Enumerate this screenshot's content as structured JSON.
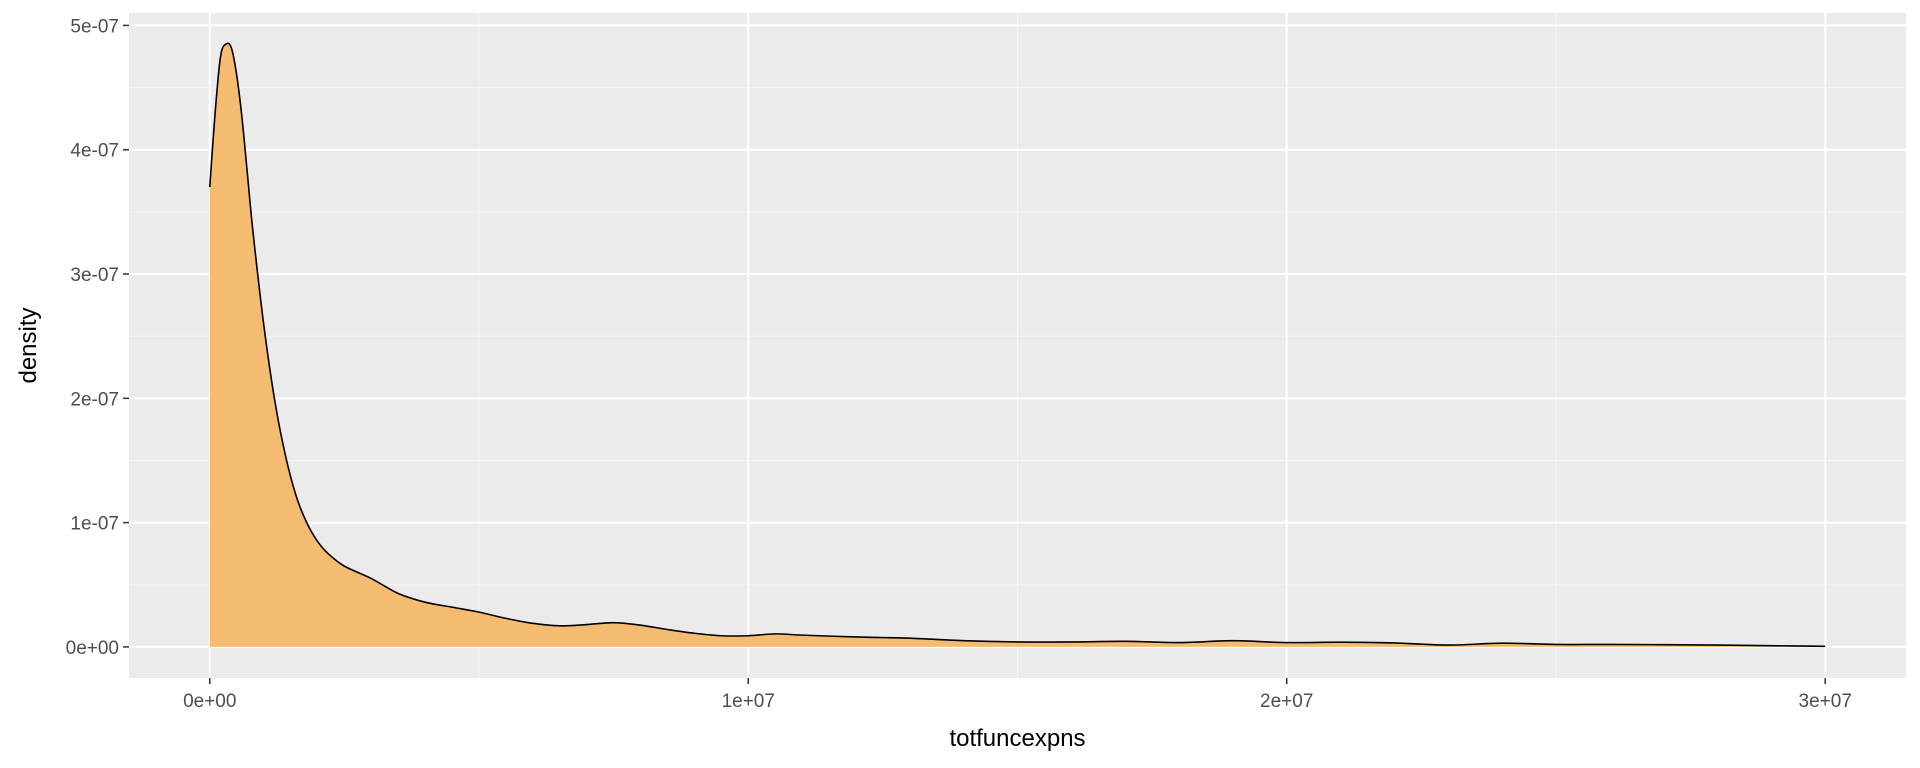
{
  "chart_data": {
    "type": "area",
    "subtype": "density",
    "title": "",
    "xlabel": "totfuncexpns",
    "ylabel": "density",
    "xlim": [
      -1500000,
      31500000
    ],
    "ylim": [
      -2.5e-08,
      5.1e-07
    ],
    "x_ticks": [
      0,
      10000000,
      20000000,
      30000000
    ],
    "x_tick_labels": [
      "0e+00",
      "1e+07",
      "2e+07",
      "3e+07"
    ],
    "y_ticks": [
      0,
      1e-07,
      2e-07,
      3e-07,
      4e-07,
      5e-07
    ],
    "y_tick_labels": [
      "0e+00",
      "1e-07",
      "2e-07",
      "3e-07",
      "4e-07",
      "5e-07"
    ],
    "grid": true,
    "legend": "none",
    "colors": {
      "fill": "#f5bb70",
      "line": "#000000",
      "panel_background": "#ebebeb",
      "grid_major": "#ffffff",
      "grid_minor": "#f5f5f5"
    },
    "series": [
      {
        "x": [
          0,
          100000,
          200000,
          300000,
          400000,
          500000,
          600000,
          700000,
          800000,
          1000000,
          1200000,
          1400000,
          1600000,
          1800000,
          2000000,
          2200000,
          2500000,
          3000000,
          3500000,
          4000000,
          4500000,
          5000000,
          5500000,
          6000000,
          6500000,
          7000000,
          7500000,
          8000000,
          8500000,
          9000000,
          9500000,
          10000000,
          10500000,
          11000000,
          12000000,
          13000000,
          14000000,
          15000000,
          16000000,
          17000000,
          18000000,
          19000000,
          20000000,
          21000000,
          22000000,
          23000000,
          24000000,
          25000000,
          26000000,
          27000000,
          28000000,
          29000000,
          30000000
        ],
        "y": [
          3.7e-07,
          4.3e-07,
          4.75e-07,
          4.85e-07,
          4.82e-07,
          4.6e-07,
          4.25e-07,
          3.8e-07,
          3.35e-07,
          2.6e-07,
          2e-07,
          1.55e-07,
          1.22e-07,
          1e-07,
          8.5e-08,
          7.5e-08,
          6.5e-08,
          5.5e-08,
          4.3e-08,
          3.6e-08,
          3.2e-08,
          2.8e-08,
          2.3e-08,
          1.9e-08,
          1.7e-08,
          1.8e-08,
          1.95e-08,
          1.75e-08,
          1.4e-08,
          1.1e-08,
          9e-09,
          9e-09,
          1.05e-08,
          9.5e-09,
          8e-09,
          7e-09,
          5e-09,
          4e-09,
          4e-09,
          4.5e-09,
          3.5e-09,
          5e-09,
          3.5e-09,
          3.8e-09,
          3.2e-09,
          1.5e-09,
          3e-09,
          2e-09,
          2e-09,
          1.8e-09,
          1.5e-09,
          1e-09,
          5e-10
        ]
      }
    ]
  }
}
